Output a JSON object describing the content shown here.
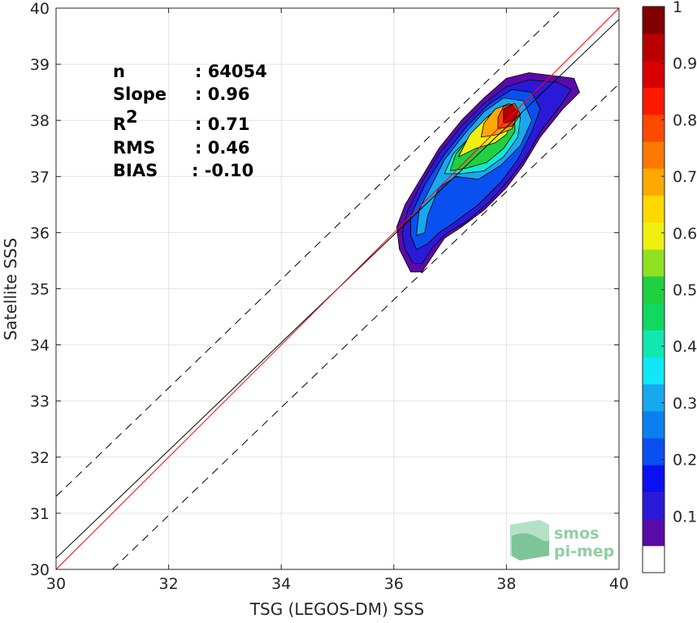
{
  "chart_data": {
    "type": "contour-density-scatter",
    "xlabel": "TSG (LEGOS-DM) SSS",
    "ylabel": "Satellite SSS",
    "xlim": [
      30,
      40
    ],
    "ylim": [
      30,
      40
    ],
    "x_ticks": [
      "30",
      "32",
      "34",
      "36",
      "38",
      "40"
    ],
    "y_ticks": [
      "30",
      "31",
      "32",
      "33",
      "34",
      "35",
      "36",
      "37",
      "38",
      "39",
      "40"
    ],
    "grid": true,
    "stats": [
      {
        "label": "n",
        "sep": ": ",
        "value": "64054"
      },
      {
        "label": "Slope",
        "sep": ": ",
        "value": "0.96"
      },
      {
        "label": "R",
        "sup": "2",
        "sep": ": ",
        "value": "0.71"
      },
      {
        "label": "RMS",
        "sep": ": ",
        "value": "0.46"
      },
      {
        "label": "BIAS",
        "sep": ": ",
        "value": "-0.10"
      }
    ],
    "lines": {
      "identity": {
        "color": "#ff0000",
        "x": [
          30,
          40
        ],
        "y": [
          30,
          40
        ]
      },
      "regression": {
        "color": "#000000",
        "slope": 0.96,
        "x": [
          30,
          40
        ],
        "y": [
          30.2,
          39.8
        ]
      },
      "envelope_upper": {
        "color": "#000000",
        "dash": true,
        "x": [
          30,
          39.0
        ],
        "y": [
          31.3,
          40.0
        ]
      },
      "envelope_lower": {
        "color": "#000000",
        "dash": true,
        "x": [
          31.0,
          40
        ],
        "y": [
          30.0,
          38.65
        ]
      }
    },
    "density_levels": [
      {
        "level": 0.05,
        "color": "#5a0aa8",
        "poly": [
          [
            36.3,
            35.3
          ],
          [
            36.5,
            35.3
          ],
          [
            36.7,
            35.6
          ],
          [
            36.9,
            35.9
          ],
          [
            37.2,
            36.1
          ],
          [
            37.6,
            36.4
          ],
          [
            38.0,
            36.8
          ],
          [
            38.3,
            37.2
          ],
          [
            38.6,
            37.7
          ],
          [
            39.0,
            38.2
          ],
          [
            39.3,
            38.5
          ],
          [
            39.2,
            38.75
          ],
          [
            38.8,
            38.8
          ],
          [
            38.4,
            38.85
          ],
          [
            38.0,
            38.75
          ],
          [
            37.6,
            38.4
          ],
          [
            37.2,
            38.0
          ],
          [
            36.8,
            37.5
          ],
          [
            36.5,
            37.0
          ],
          [
            36.2,
            36.5
          ],
          [
            36.05,
            36.1
          ],
          [
            36.1,
            35.7
          ]
        ]
      },
      {
        "level": 0.1,
        "color": "#2a1ad8",
        "poly": [
          [
            36.35,
            35.45
          ],
          [
            36.5,
            35.45
          ],
          [
            36.7,
            35.75
          ],
          [
            36.95,
            36.0
          ],
          [
            37.3,
            36.2
          ],
          [
            37.7,
            36.55
          ],
          [
            38.05,
            36.95
          ],
          [
            38.35,
            37.35
          ],
          [
            38.6,
            37.8
          ],
          [
            38.95,
            38.25
          ],
          [
            39.15,
            38.55
          ],
          [
            38.9,
            38.68
          ],
          [
            38.4,
            38.72
          ],
          [
            38.0,
            38.6
          ],
          [
            37.6,
            38.3
          ],
          [
            37.2,
            37.9
          ],
          [
            36.8,
            37.4
          ],
          [
            36.5,
            36.9
          ],
          [
            36.25,
            36.4
          ],
          [
            36.15,
            36.0
          ],
          [
            36.2,
            35.7
          ]
        ]
      },
      {
        "level": 0.2,
        "color": "#0a50f0",
        "poly": [
          [
            36.4,
            35.7
          ],
          [
            36.6,
            35.8
          ],
          [
            36.8,
            36.0
          ],
          [
            37.1,
            36.2
          ],
          [
            37.5,
            36.5
          ],
          [
            37.9,
            36.9
          ],
          [
            38.2,
            37.3
          ],
          [
            38.45,
            37.8
          ],
          [
            38.6,
            38.2
          ],
          [
            38.45,
            38.5
          ],
          [
            38.1,
            38.55
          ],
          [
            37.7,
            38.3
          ],
          [
            37.3,
            37.9
          ],
          [
            36.9,
            37.4
          ],
          [
            36.55,
            36.85
          ],
          [
            36.3,
            36.3
          ],
          [
            36.3,
            35.95
          ]
        ]
      },
      {
        "level": 0.3,
        "color": "#18a8f0",
        "poly": [
          [
            36.4,
            35.95
          ],
          [
            36.55,
            36.0
          ],
          [
            36.6,
            36.3
          ],
          [
            36.8,
            36.8
          ],
          [
            37.1,
            37.0
          ],
          [
            37.5,
            36.95
          ],
          [
            37.9,
            37.2
          ],
          [
            38.25,
            37.55
          ],
          [
            38.45,
            38.0
          ],
          [
            38.3,
            38.35
          ],
          [
            37.95,
            38.4
          ],
          [
            37.6,
            38.15
          ],
          [
            37.25,
            37.75
          ],
          [
            36.9,
            37.3
          ],
          [
            36.65,
            36.8
          ],
          [
            36.45,
            36.4
          ]
        ]
      },
      {
        "level": 0.4,
        "color": "#10e8d8",
        "poly": [
          [
            36.9,
            37.05
          ],
          [
            37.2,
            37.05
          ],
          [
            37.6,
            37.1
          ],
          [
            37.95,
            37.35
          ],
          [
            38.2,
            37.7
          ],
          [
            38.25,
            38.05
          ],
          [
            38.05,
            38.3
          ],
          [
            37.7,
            38.1
          ],
          [
            37.35,
            37.7
          ],
          [
            37.05,
            37.4
          ]
        ]
      },
      {
        "level": 0.5,
        "color": "#20d040",
        "poly": [
          [
            37.0,
            37.1
          ],
          [
            37.3,
            37.15
          ],
          [
            37.65,
            37.25
          ],
          [
            37.95,
            37.5
          ],
          [
            38.15,
            37.8
          ],
          [
            38.15,
            38.1
          ],
          [
            37.95,
            38.25
          ],
          [
            37.65,
            38.05
          ],
          [
            37.35,
            37.7
          ],
          [
            37.1,
            37.4
          ]
        ]
      },
      {
        "level": 0.6,
        "color": "#f0f010",
        "poly": [
          [
            37.15,
            37.35
          ],
          [
            37.45,
            37.5
          ],
          [
            37.8,
            37.6
          ],
          [
            38.0,
            37.75
          ],
          [
            38.1,
            38.0
          ],
          [
            37.95,
            38.2
          ],
          [
            37.65,
            38.05
          ],
          [
            37.35,
            37.75
          ]
        ]
      },
      {
        "level": 0.7,
        "color": "#ffa800",
        "poly": [
          [
            37.55,
            37.7
          ],
          [
            37.85,
            37.75
          ],
          [
            38.1,
            37.85
          ],
          [
            38.2,
            38.1
          ],
          [
            38.05,
            38.3
          ],
          [
            37.8,
            38.2
          ],
          [
            37.6,
            37.95
          ]
        ]
      },
      {
        "level": 0.8,
        "color": "#ff4800",
        "poly": [
          [
            37.85,
            37.85
          ],
          [
            38.1,
            37.9
          ],
          [
            38.25,
            38.1
          ],
          [
            38.15,
            38.3
          ],
          [
            37.95,
            38.25
          ],
          [
            37.85,
            38.05
          ]
        ]
      },
      {
        "level": 0.9,
        "color": "#b80000",
        "poly": [
          [
            37.95,
            37.95
          ],
          [
            38.15,
            38.0
          ],
          [
            38.2,
            38.15
          ],
          [
            38.1,
            38.28
          ],
          [
            37.95,
            38.2
          ]
        ]
      }
    ],
    "colorbar": {
      "range": [
        0,
        1
      ],
      "ticks": [
        "0.1",
        "0.2",
        "0.3",
        "0.4",
        "0.5",
        "0.6",
        "0.7",
        "0.8",
        "0.9",
        "1"
      ],
      "colors": [
        "#ffffff",
        "#5a0aa8",
        "#2a1ad8",
        "#0a10f0",
        "#0a50f0",
        "#0a80f0",
        "#18a8f0",
        "#10e8f8",
        "#10e8b0",
        "#10d860",
        "#20d040",
        "#90e020",
        "#f0f010",
        "#ffd800",
        "#ffa800",
        "#ff7800",
        "#ff4800",
        "#ff1800",
        "#d80000",
        "#b80000",
        "#800000"
      ]
    }
  },
  "logo": {
    "line1": "smos",
    "line2": "pi-mep"
  }
}
